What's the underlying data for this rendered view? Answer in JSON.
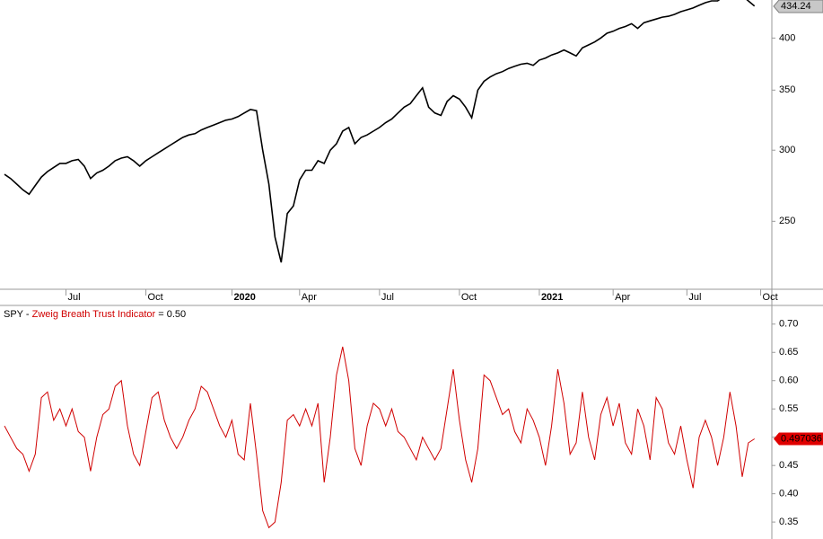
{
  "chart_data": [
    {
      "type": "line",
      "log_scale": true,
      "color": "#000000",
      "categories": [
        null,
        null,
        null,
        null,
        null,
        null,
        null,
        null,
        null,
        null,
        "Jul",
        null,
        null,
        null,
        null,
        null,
        null,
        null,
        null,
        null,
        null,
        null,
        null,
        "Oct",
        null,
        null,
        null,
        null,
        null,
        null,
        null,
        null,
        null,
        null,
        null,
        null,
        null,
        "2020",
        null,
        null,
        null,
        null,
        null,
        null,
        null,
        null,
        null,
        null,
        "Apr",
        null,
        null,
        null,
        null,
        null,
        null,
        null,
        null,
        null,
        null,
        null,
        null,
        "Jul",
        null,
        null,
        null,
        null,
        null,
        null,
        null,
        null,
        null,
        null,
        null,
        null,
        "Oct",
        null,
        null,
        null,
        null,
        null,
        null,
        null,
        null,
        null,
        null,
        null,
        null,
        "2021",
        null,
        null,
        null,
        null,
        null,
        null,
        null,
        null,
        null,
        null,
        null,
        "Apr",
        null,
        null,
        null,
        null,
        null,
        null,
        null,
        null,
        null,
        null,
        null,
        "Jul",
        null,
        null,
        null,
        null,
        null,
        null,
        null,
        null,
        null,
        null,
        null,
        "Oct"
      ],
      "values": [
        282,
        279,
        275,
        271,
        268,
        274,
        280,
        284,
        287,
        290,
        290,
        292,
        293,
        288,
        279,
        283,
        285,
        288,
        292,
        294,
        295,
        292,
        288,
        292,
        295,
        298,
        301,
        304,
        307,
        310,
        312,
        313,
        316,
        318,
        320,
        322,
        324,
        325,
        327,
        330,
        333,
        332,
        300,
        275,
        240,
        225,
        255,
        260,
        278,
        285,
        285,
        292,
        290,
        300,
        305,
        315,
        318,
        305,
        310,
        312,
        315,
        318,
        322,
        325,
        330,
        335,
        338,
        345,
        352,
        335,
        330,
        328,
        340,
        345,
        342,
        335,
        326,
        350,
        358,
        362,
        365,
        367,
        370,
        372,
        374,
        375,
        373,
        378,
        380,
        383,
        385,
        388,
        385,
        382,
        390,
        393,
        396,
        400,
        405,
        407,
        410,
        412,
        415,
        410,
        416,
        418,
        420,
        422,
        423,
        425,
        428,
        430,
        432,
        435,
        438,
        440,
        440,
        445,
        447,
        449,
        446,
        440,
        434.24,
        null
      ],
      "ylim": [
        210,
        441
      ],
      "yticks": [
        250,
        300,
        350,
        400
      ]
    },
    {
      "type": "line",
      "symbol": "SPY -",
      "readout": "= 0.50",
      "series": [
        {
          "name": "Zweig Breath Trust Indicator",
          "color": "#d00000",
          "values": [
            0.52,
            0.5,
            0.48,
            0.47,
            0.44,
            0.47,
            0.57,
            0.58,
            0.53,
            0.55,
            0.52,
            0.55,
            0.51,
            0.5,
            0.44,
            0.5,
            0.54,
            0.55,
            0.59,
            0.6,
            0.52,
            0.47,
            0.45,
            0.51,
            0.57,
            0.58,
            0.53,
            0.5,
            0.48,
            0.5,
            0.53,
            0.55,
            0.59,
            0.58,
            0.55,
            0.52,
            0.5,
            0.53,
            0.47,
            0.46,
            0.56,
            0.47,
            0.37,
            0.34,
            0.35,
            0.42,
            0.53,
            0.54,
            0.52,
            0.55,
            0.52,
            0.56,
            0.42,
            0.5,
            0.61,
            0.66,
            0.6,
            0.48,
            0.45,
            0.52,
            0.56,
            0.55,
            0.52,
            0.55,
            0.51,
            0.5,
            0.48,
            0.46,
            0.5,
            0.48,
            0.46,
            0.48,
            0.55,
            0.62,
            0.53,
            0.46,
            0.42,
            0.48,
            0.61,
            0.6,
            0.57,
            0.54,
            0.55,
            0.51,
            0.49,
            0.55,
            0.53,
            0.5,
            0.45,
            0.52,
            0.62,
            0.56,
            0.47,
            0.49,
            0.58,
            0.5,
            0.46,
            0.54,
            0.57,
            0.52,
            0.56,
            0.49,
            0.47,
            0.55,
            0.52,
            0.46,
            0.57,
            0.55,
            0.49,
            0.47,
            0.52,
            0.46,
            0.41,
            0.5,
            0.53,
            0.5,
            0.45,
            0.5,
            0.58,
            0.52,
            0.43,
            0.49,
            0.497036,
            null
          ]
        }
      ],
      "ylim": [
        0.32,
        0.733
      ],
      "yticks": [
        0.35,
        {
          "value": 0.4,
          "label": "0.40"
        },
        0.45,
        {
          "value": 0.5,
          "label": "0.50"
        },
        0.55,
        {
          "value": 0.6,
          "label": "0.60"
        },
        0.65,
        {
          "value": 0.7,
          "label": "0.70"
        }
      ]
    }
  ]
}
